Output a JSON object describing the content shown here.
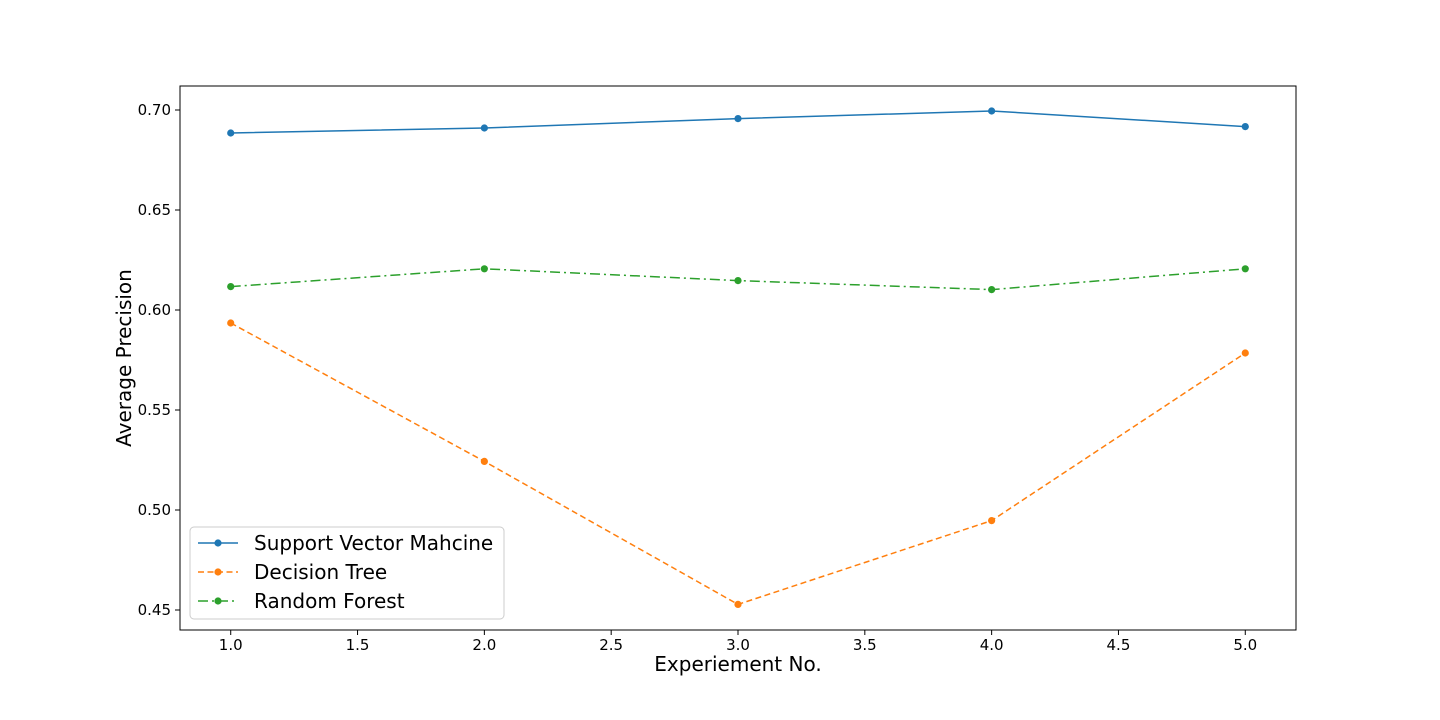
{
  "chart_data": {
    "type": "line",
    "title": "",
    "xlabel": "Experiement No.",
    "ylabel": "Average Precision",
    "xlim": [
      0.8,
      5.2
    ],
    "ylim": [
      0.44,
      0.712
    ],
    "xticks": [
      1.0,
      1.5,
      2.0,
      2.5,
      3.0,
      3.5,
      4.0,
      4.5,
      5.0
    ],
    "xtick_labels": [
      "1.0",
      "1.5",
      "2.0",
      "2.5",
      "3.0",
      "3.5",
      "4.0",
      "4.5",
      "5.0"
    ],
    "yticks": [
      0.45,
      0.5,
      0.55,
      0.6,
      0.65,
      0.7
    ],
    "ytick_labels": [
      "0.45",
      "0.50",
      "0.55",
      "0.60",
      "0.65",
      "0.70"
    ],
    "grid": false,
    "legend_position": "bottom-left",
    "x": [
      1,
      2,
      3,
      4,
      5
    ],
    "series": [
      {
        "name": "Support Vector Mahcine",
        "values": [
          0.6885,
          0.691,
          0.6957,
          0.6995,
          0.6917
        ],
        "color": "#1f77b4",
        "line_style": "solid",
        "marker": "circle"
      },
      {
        "name": "Decision Tree",
        "values": [
          0.5935,
          0.5243,
          0.4528,
          0.4947,
          0.5785
        ],
        "color": "#ff7f0e",
        "line_style": "dashed",
        "marker": "circle"
      },
      {
        "name": "Random Forest",
        "values": [
          0.6117,
          0.6206,
          0.6147,
          0.6102,
          0.6206
        ],
        "color": "#2ca02c",
        "line_style": "dashdot",
        "marker": "circle"
      }
    ]
  }
}
